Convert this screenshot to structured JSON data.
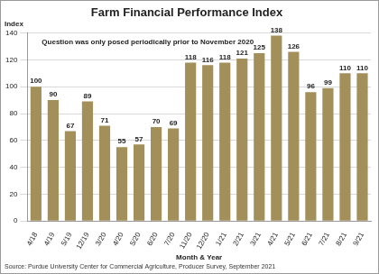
{
  "chart_data": {
    "type": "bar",
    "title": "Farm Financial Performance Index",
    "ylabel": "Index",
    "xlabel": "Month & Year",
    "annotation": "Question was only posed periodically prior to November 2020",
    "source": "Source: Purdue University Center for Commercial Agriculture, Producer Survey, September 2021",
    "categories": [
      "4/18",
      "4/19",
      "5/19",
      "12/19",
      "3/20",
      "4/20",
      "5/20",
      "6/20",
      "7/20",
      "11/20",
      "12/20",
      "1/21",
      "2/21",
      "3/21",
      "4/21",
      "5/21",
      "6/21",
      "7/21",
      "8/21",
      "9/21"
    ],
    "values": [
      100,
      90,
      67,
      89,
      71,
      55,
      57,
      70,
      69,
      118,
      116,
      118,
      121,
      125,
      138,
      126,
      96,
      99,
      110,
      110
    ],
    "color": "#a38f5a",
    "ylim": [
      0,
      140
    ],
    "yticks": [
      0,
      20,
      40,
      60,
      80,
      100,
      120,
      140
    ],
    "grid": true,
    "data_labels": true
  }
}
